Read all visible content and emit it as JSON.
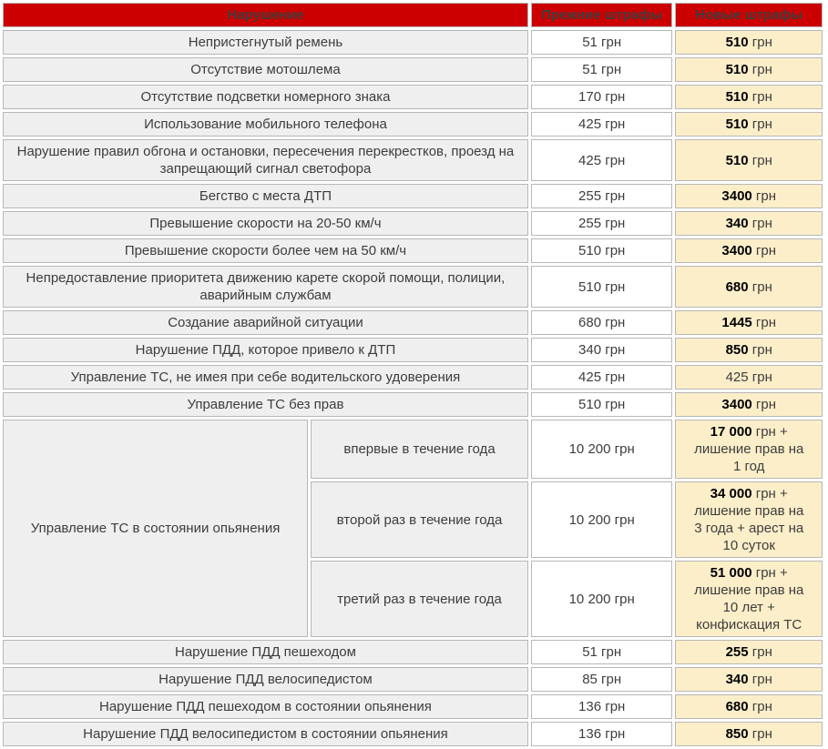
{
  "colors": {
    "header_bg": "#cc0000",
    "header_text": "#ffffff",
    "violation_cell_bg": "#efefef",
    "old_fine_cell_bg": "#ffffff",
    "new_fine_cell_bg": "#fceec9",
    "cell_border": "#b7b7b7",
    "body_text": "#3d3d3d",
    "bold_amount_text": "#000000"
  },
  "chart_data": {
    "type": "table",
    "currency": "грн",
    "columns": [
      "Нарушение",
      "Прежние штрафы",
      "Новые штрафы"
    ],
    "rows": [
      {
        "violation": "Непристегнутый ремень",
        "old": "51 грн",
        "new": {
          "bold": "510",
          "rest": "грн"
        }
      },
      {
        "violation": "Отсутствие мотошлема",
        "old": "51 грн",
        "new": {
          "bold": "510",
          "rest": "грн"
        }
      },
      {
        "violation": "Отсутствие подсветки номерного знака",
        "old": "170 грн",
        "new": {
          "bold": "510",
          "rest": "грн"
        }
      },
      {
        "violation": "Использование мобильного телефона",
        "old": "425 грн",
        "new": {
          "bold": "510",
          "rest": "грн"
        }
      },
      {
        "violation": "Нарушение правил обгона и остановки, пересечения перекрестков, проезд на запрещающий сигнал светофора",
        "old": "425 грн",
        "new": {
          "bold": "510",
          "rest": "грн"
        }
      },
      {
        "violation": "Бегство с места ДТП",
        "old": "255 грн",
        "new": {
          "bold": "3400",
          "rest": "грн"
        }
      },
      {
        "violation": "Превышение скорости на 20-50 км/ч",
        "old": "255 грн",
        "new": {
          "bold": "340",
          "rest": "грн"
        }
      },
      {
        "violation": "Превышение скорости более чем на 50 км/ч",
        "old": "510 грн",
        "new": {
          "bold": "3400",
          "rest": "грн"
        }
      },
      {
        "violation": "Непредоставление приоритета движению карете скорой помощи, полиции, аварийным службам",
        "old": "510 грн",
        "new": {
          "bold": "680",
          "rest": "грн"
        }
      },
      {
        "violation": "Создание аварийной ситуации",
        "old": "680 грн",
        "new": {
          "bold": "1445",
          "rest": "грн"
        }
      },
      {
        "violation": "Нарушение ПДД, которое привело к ДТП",
        "old": "340 грн",
        "new": {
          "bold": "850",
          "rest": "грн"
        }
      },
      {
        "violation": "Управление ТС, не имея при себе водительского удоверения",
        "old": "425 грн",
        "new": {
          "bold": "",
          "rest": "425 грн"
        }
      },
      {
        "violation": "Управление ТС без прав",
        "old": "510 грн",
        "new": {
          "bold": "3400",
          "rest": "грн"
        }
      },
      {
        "violation": "Управление ТС в состоянии опьянения",
        "subrows": [
          {
            "condition": "впервые в течение года",
            "old": "10 200 грн",
            "new": {
              "bold": "17 000",
              "rest": "грн +\nлишение прав на\n1 год"
            }
          },
          {
            "condition": "второй раз в течение года",
            "old": "10 200 грн",
            "new": {
              "bold": "34 000",
              "rest": "грн +\nлишение прав на\n3 года + арест на\n10 суток"
            }
          },
          {
            "condition": "третий раз в течение года",
            "old": "10 200 грн",
            "new": {
              "bold": "51 000",
              "rest": "грн +\nлишение прав на\n10 лет +\nконфискация ТС"
            }
          }
        ]
      },
      {
        "violation": "Нарушение ПДД пешеходом",
        "old": "51 грн",
        "new": {
          "bold": "255",
          "rest": "грн"
        }
      },
      {
        "violation": "Нарушение ПДД велосипедистом",
        "old": "85 грн",
        "new": {
          "bold": "340",
          "rest": "грн"
        }
      },
      {
        "violation": "Нарушение ПДД пешеходом в состоянии опьянения",
        "old": "136 грн",
        "new": {
          "bold": "680",
          "rest": "грн"
        }
      },
      {
        "violation": "Нарушение ПДД велосипедистом в состоянии опьянения",
        "old": "136 грн",
        "new": {
          "bold": "850",
          "rest": "грн"
        }
      }
    ]
  }
}
